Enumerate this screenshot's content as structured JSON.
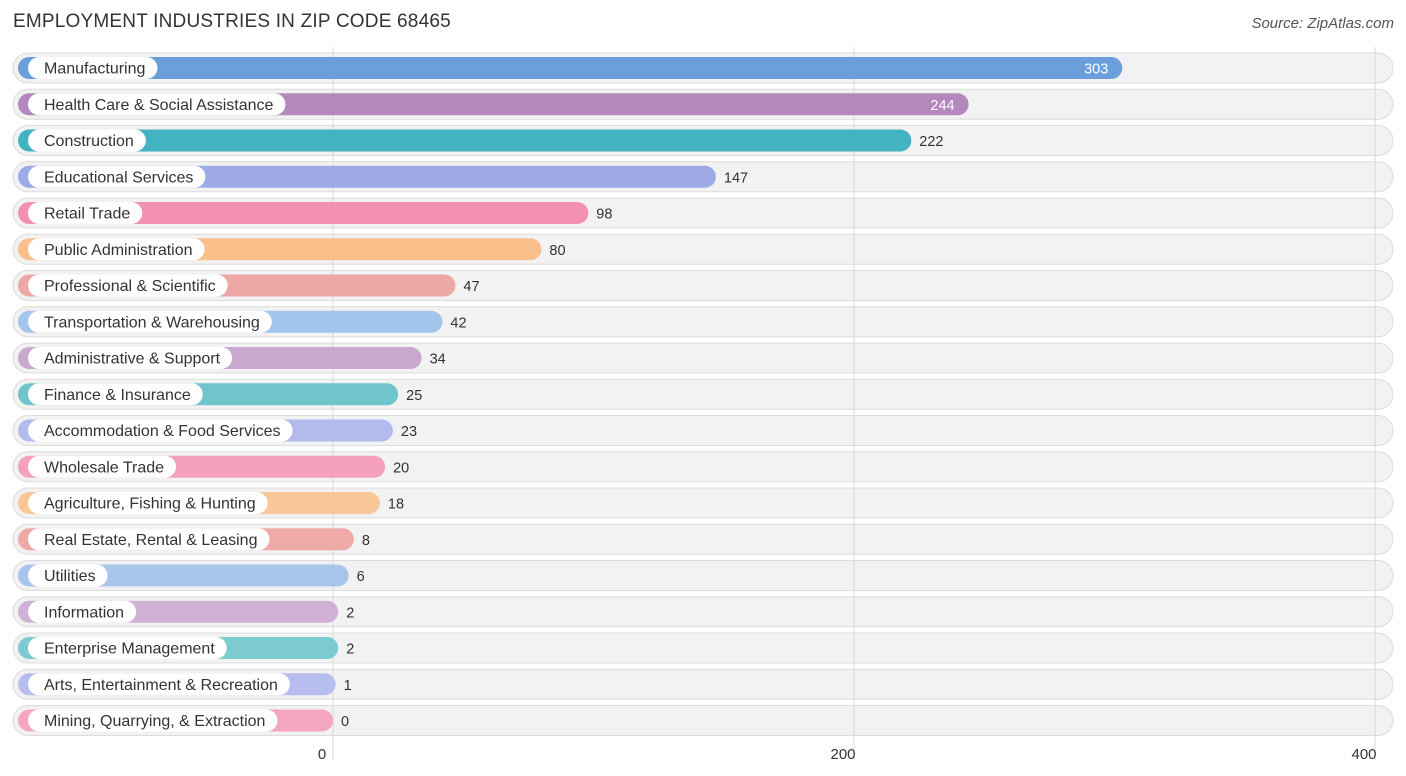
{
  "title": "EMPLOYMENT INDUSTRIES IN ZIP CODE 68465",
  "source": "Source: ZipAtlas.com",
  "chart_data": {
    "type": "bar",
    "orientation": "horizontal",
    "title": "EMPLOYMENT INDUSTRIES IN ZIP CODE 68465",
    "xlabel": "",
    "ylabel": "",
    "xlim": [
      0,
      400
    ],
    "xticks": [
      0,
      200,
      400
    ],
    "grid": true,
    "categories": [
      "Manufacturing",
      "Health Care & Social Assistance",
      "Construction",
      "Educational Services",
      "Retail Trade",
      "Public Administration",
      "Professional & Scientific",
      "Transportation & Warehousing",
      "Administrative & Support",
      "Finance & Insurance",
      "Accommodation & Food Services",
      "Wholesale Trade",
      "Agriculture, Fishing & Hunting",
      "Real Estate, Rental & Leasing",
      "Utilities",
      "Information",
      "Enterprise Management",
      "Arts, Entertainment & Recreation",
      "Mining, Quarrying, & Extraction"
    ],
    "values": [
      303,
      244,
      222,
      147,
      98,
      80,
      47,
      42,
      34,
      25,
      23,
      20,
      18,
      8,
      6,
      2,
      2,
      1,
      0
    ],
    "colors": [
      "#6a9fdc",
      "#b487bd",
      "#43b3c1",
      "#9eaae6",
      "#f491b1",
      "#f9c08b",
      "#eda8a6",
      "#a3c4eb",
      "#c9a9d0",
      "#6fc5cb",
      "#b3bbee",
      "#f5a0bd",
      "#f9c797",
      "#efaaa8",
      "#a8c6ec",
      "#cfb1d5",
      "#7ecbcf",
      "#b7bdef",
      "#f5a7c1"
    ]
  }
}
